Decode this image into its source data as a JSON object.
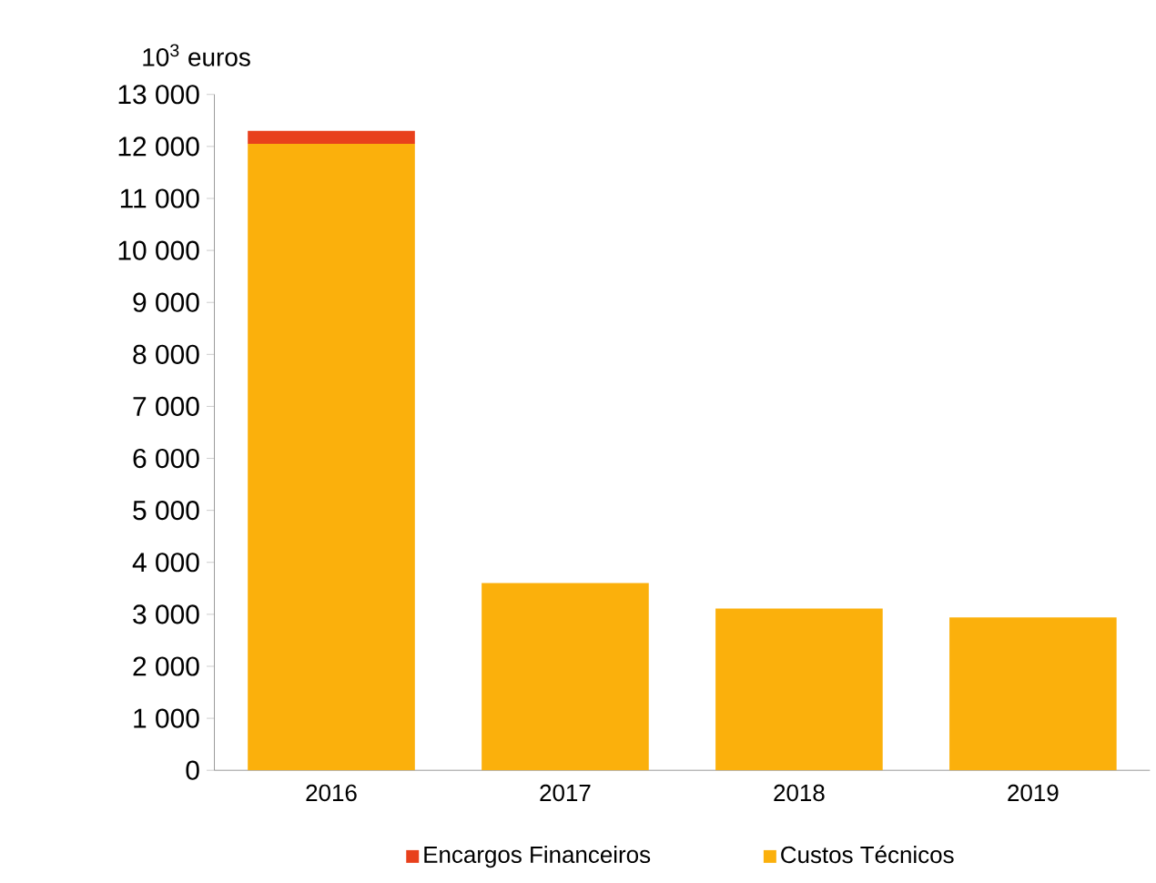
{
  "chart_data": {
    "type": "bar",
    "stacked": true,
    "ylabel": "10$^{3}$ euros",
    "categories": [
      "2016",
      "2017",
      "2018",
      "2019"
    ],
    "series": [
      {
        "name": "Custos Técnicos",
        "color": "#fbb00c",
        "values": [
          12050,
          3600,
          3110,
          2940
        ]
      },
      {
        "name": "Encargos Financeiros",
        "color": "#e8401c",
        "values": [
          250,
          0,
          0,
          0
        ]
      }
    ],
    "ylim": [
      0,
      13000
    ],
    "yticks": [
      {
        "value": 0,
        "label": "0"
      },
      {
        "value": 1000,
        "label": "1 000"
      },
      {
        "value": 2000,
        "label": "2 000"
      },
      {
        "value": 3000,
        "label": "3 000"
      },
      {
        "value": 4000,
        "label": "4 000"
      },
      {
        "value": 5000,
        "label": "5 000"
      },
      {
        "value": 6000,
        "label": "6 000"
      },
      {
        "value": 7000,
        "label": "7 000"
      },
      {
        "value": 8000,
        "label": "8 000"
      },
      {
        "value": 9000,
        "label": "9 000"
      },
      {
        "value": 10000,
        "label": "10 000"
      },
      {
        "value": 11000,
        "label": "11 000"
      },
      {
        "value": 12000,
        "label": "12 000"
      },
      {
        "value": 13000,
        "label": "13 000"
      }
    ],
    "grid": false,
    "legend": "bottom"
  }
}
